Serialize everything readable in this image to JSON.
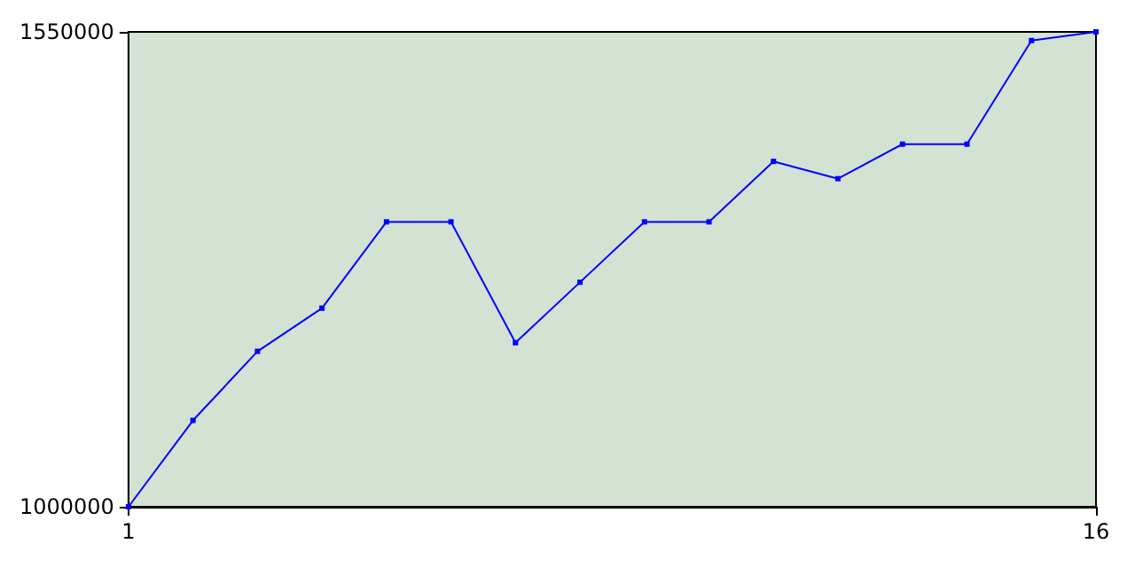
{
  "chart_data": {
    "type": "line",
    "x": [
      1,
      2,
      3,
      4,
      5,
      6,
      7,
      8,
      9,
      10,
      11,
      12,
      13,
      14,
      15,
      16
    ],
    "series": [
      {
        "color": "#0000ff",
        "values": [
          1000000,
          1100000,
          1180000,
          1230000,
          1330000,
          1330000,
          1190000,
          1260000,
          1330000,
          1330000,
          1400000,
          1380000,
          1420000,
          1420000,
          1540000,
          1550000
        ]
      }
    ],
    "xlim": [
      1,
      16
    ],
    "xticks": [
      1,
      16
    ],
    "ylim": [
      1000000,
      1550000
    ],
    "yticks": [
      1000000,
      1550000
    ],
    "grid": false,
    "marker": "square",
    "line_style": "solid"
  }
}
